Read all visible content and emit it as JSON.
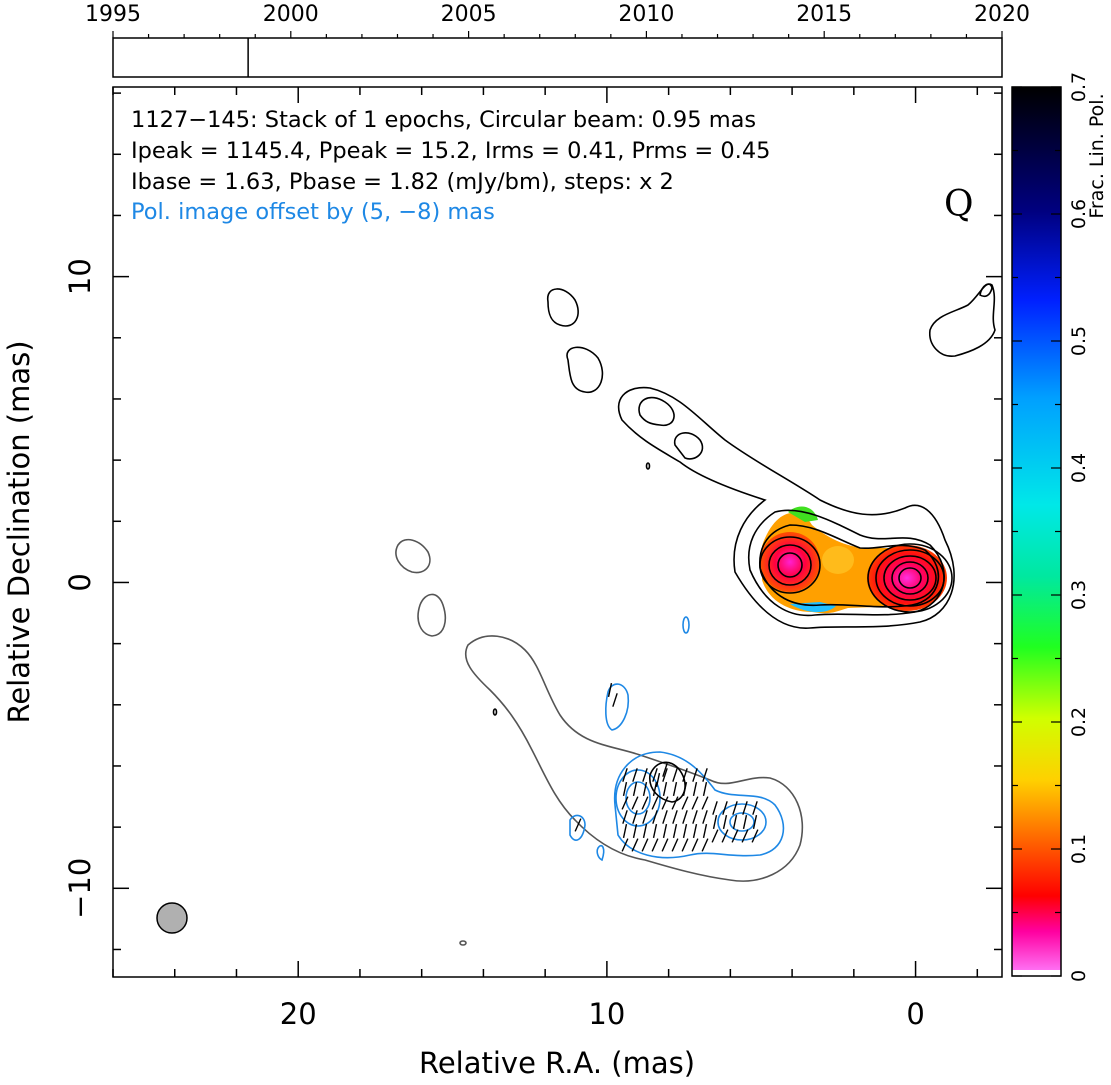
{
  "timeline": {
    "years": [
      "1995",
      "2000",
      "2005",
      "2010",
      "2015",
      "2020"
    ],
    "year_range": [
      1995,
      2020
    ],
    "epoch_marker_year": 1998.8
  },
  "header": {
    "line1": "1127−145: Stack of 1 epochs, Circular beam: 0.95 mas",
    "line2": "Ipeak = 1145.4, Ppeak = 15.2, Irms = 0.41, Prms = 0.45",
    "line3": "Ibase = 1.63, Pbase = 1.82 (mJy/bm), steps: x 2",
    "line4": "Pol. image offset by (5, −8) mas",
    "band": "Q"
  },
  "colors": {
    "axes": "#000000",
    "stokes_i_contour": "#000000",
    "offset_i_contour": "#555555",
    "pol_contour": "#1e88e5",
    "pol_text": "#1e88e5",
    "beam_fill": "#b0b0b0"
  },
  "chart_data": {
    "type": "heatmap",
    "xlabel": "Relative R.A. (mas)",
    "ylabel": "Relative Declination (mas)",
    "xlim": [
      26.0,
      -2.8
    ],
    "ylim": [
      -12.9,
      16.2
    ],
    "x_tick_labels": [
      "20",
      "10",
      "0"
    ],
    "y_tick_labels": [
      "10",
      "0",
      "−10"
    ],
    "x_ticks": [
      20,
      10,
      0
    ],
    "y_ticks": [
      10,
      0,
      -10
    ],
    "colorbar": {
      "label": "Frac. Lin. Pol.",
      "range": [
        0,
        0.7
      ],
      "tick_labels": [
        "0",
        "0.1",
        "0.2",
        "0.3",
        "0.4",
        "0.5",
        "0.6",
        "0.7"
      ],
      "ticks": [
        0,
        0.1,
        0.2,
        0.3,
        0.4,
        0.5,
        0.6,
        0.7
      ]
    },
    "core_position": [
      0,
      0
    ],
    "beam_fwhm_mas": 0.95,
    "polarization_offset_mas": [
      5,
      -8
    ]
  }
}
